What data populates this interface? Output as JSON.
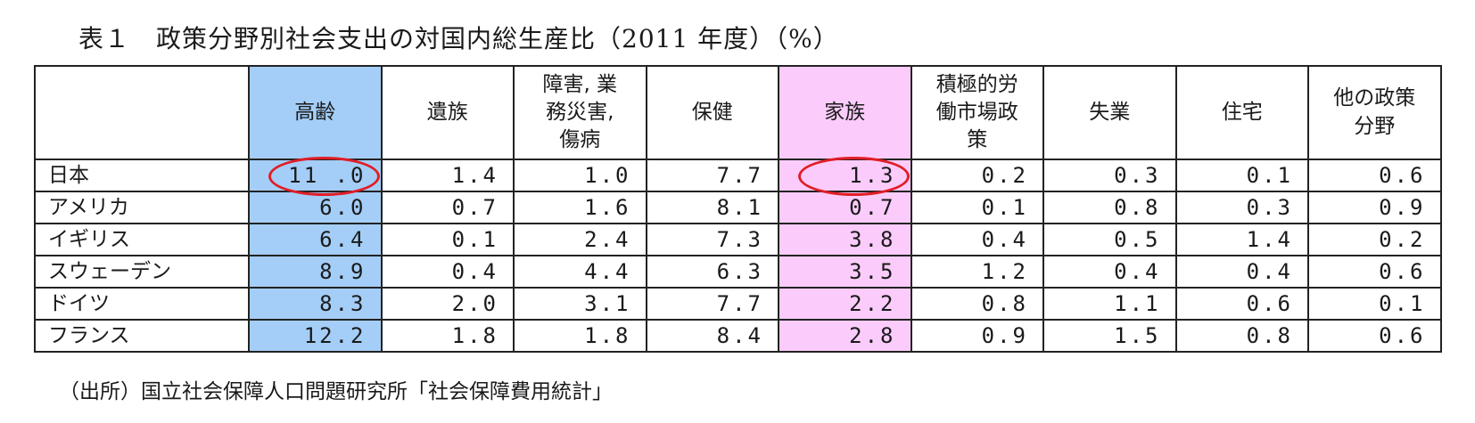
{
  "title": "表１　政策分野別社会支出の対国内総生産比（2011 年度）（%）",
  "source": "（出所）国立社会保障人口問題研究所「社会保障費用統計」",
  "colors": {
    "aged_highlight": "#a4cef7",
    "family_highlight": "#fbccfb",
    "annotation_circle": "#e11d26"
  },
  "table": {
    "headers": [
      "",
      "高齢",
      "遺族",
      "障害, 業\n務災害,\n傷病",
      "保健",
      "家族",
      "積極的労\n働市場政\n策",
      "失業",
      "住宅",
      "他の政策\n分野"
    ],
    "rows": [
      {
        "country": "日本",
        "values": [
          "11 .0",
          "1.4",
          "1.0",
          "7.7",
          "1.3",
          "0.2",
          "0.3",
          "0.1",
          "0.6"
        ]
      },
      {
        "country": "アメリカ",
        "values": [
          "6.0",
          "0.7",
          "1.6",
          "8.1",
          "0.7",
          "0.1",
          "0.8",
          "0.3",
          "0.9"
        ]
      },
      {
        "country": "イギリス",
        "values": [
          "6.4",
          "0.1",
          "2.4",
          "7.3",
          "3.8",
          "0.4",
          "0.5",
          "1.4",
          "0.2"
        ]
      },
      {
        "country": "スウェーデン",
        "values": [
          "8.9",
          "0.4",
          "4.4",
          "6.3",
          "3.5",
          "1.2",
          "0.4",
          "0.4",
          "0.6"
        ]
      },
      {
        "country": "ドイツ",
        "values": [
          "8.3",
          "2.0",
          "3.1",
          "7.7",
          "2.2",
          "0.8",
          "1.1",
          "0.6",
          "0.1"
        ]
      },
      {
        "country": "フランス",
        "values": [
          "12.2",
          "1.8",
          "1.8",
          "8.4",
          "2.8",
          "0.9",
          "1.5",
          "0.8",
          "0.6"
        ]
      }
    ]
  }
}
